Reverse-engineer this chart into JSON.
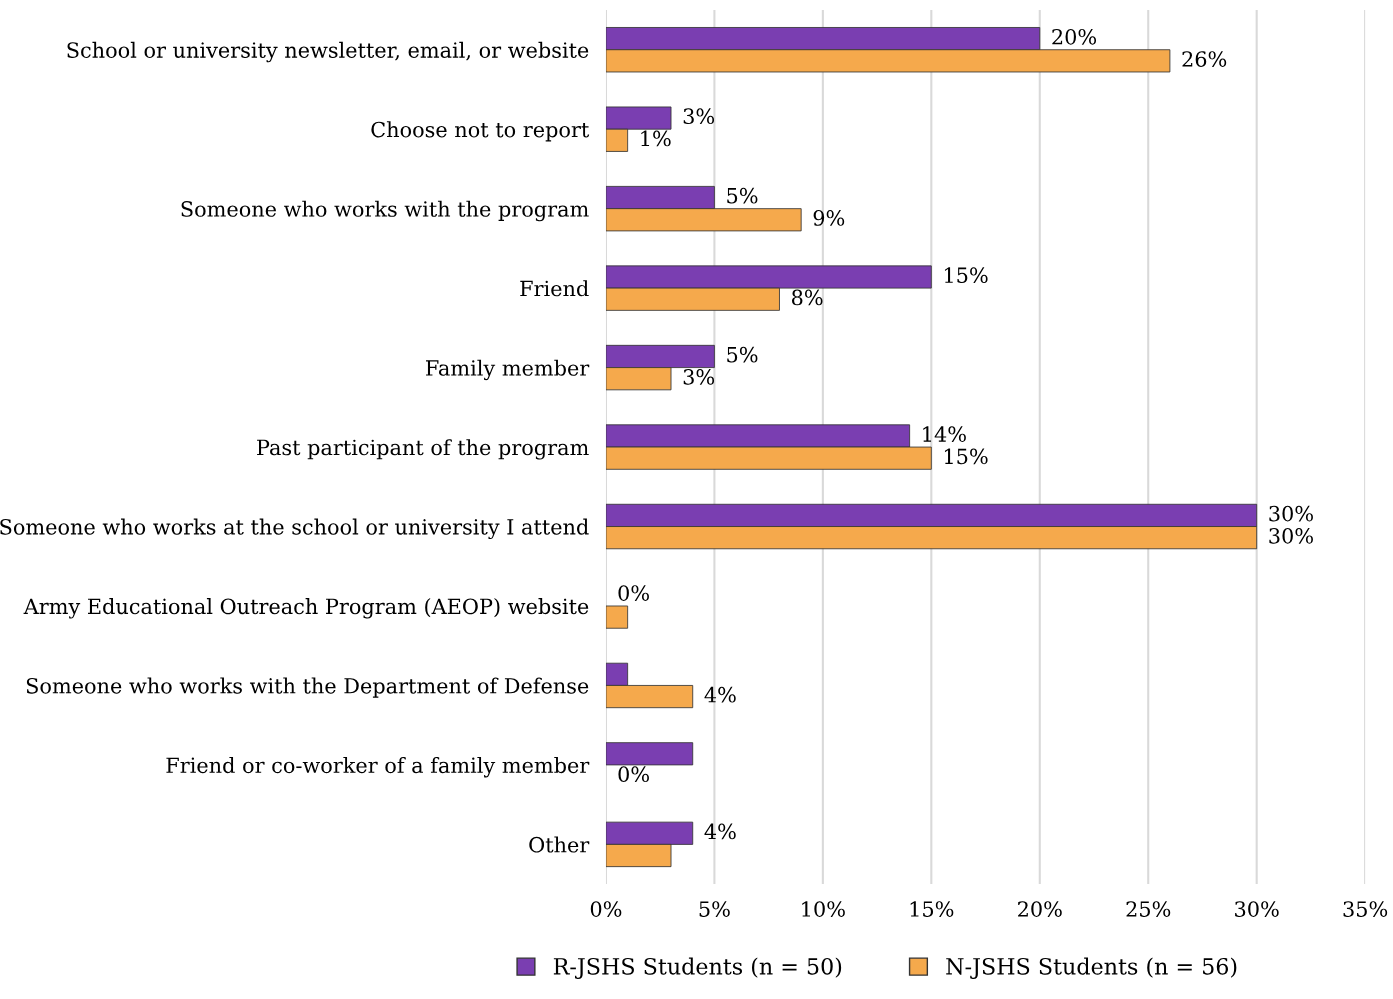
{
  "chart_data": {
    "type": "bar",
    "orientation": "horizontal",
    "categories": [
      "School or university newsletter, email, or website",
      "Choose not to report",
      "Someone who works with the program",
      "Friend",
      "Family member",
      "Past participant of the program",
      "Someone who works at the school or university I attend",
      "Army Educational Outreach Program (AEOP) website",
      "Someone who works with the Department of Defense",
      "Friend or co-worker of a family member",
      "Other"
    ],
    "series": [
      {
        "name": "R-JSHS Students (n = 50)",
        "color": "#7a3eb1",
        "values": [
          20,
          3,
          5,
          15,
          5,
          14,
          30,
          0,
          1,
          4,
          4
        ],
        "value_labels": [
          "20%",
          "3%",
          "5%",
          "15%",
          "5%",
          "14%",
          "30%",
          "0%",
          null,
          null,
          "4%"
        ]
      },
      {
        "name": "N-JSHS Students (n = 56)",
        "color": "#f5a94c",
        "values": [
          26,
          1,
          9,
          8,
          3,
          15,
          30,
          1,
          4,
          0,
          3
        ],
        "value_labels": [
          "26%",
          "1%",
          "9%",
          "8%",
          "3%",
          "15%",
          "30%",
          null,
          "4%",
          "0%",
          null
        ]
      }
    ],
    "xlim": [
      0,
      35
    ],
    "xticks": [
      {
        "value": 0,
        "label": "0%"
      },
      {
        "value": 5,
        "label": "5%"
      },
      {
        "value": 10,
        "label": "10%"
      },
      {
        "value": 15,
        "label": "15%"
      },
      {
        "value": 20,
        "label": "20%"
      },
      {
        "value": 25,
        "label": "25%"
      },
      {
        "value": 30,
        "label": "30%"
      },
      {
        "value": 35,
        "label": "35%"
      }
    ],
    "grid": "x",
    "legend": "bottom"
  }
}
